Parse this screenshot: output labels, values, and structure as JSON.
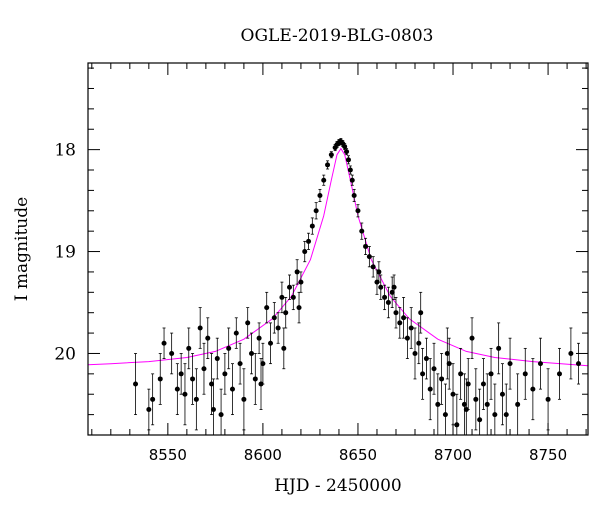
{
  "chart_data": {
    "type": "scatter",
    "title": "OGLE-2019-BLG-0803",
    "xlabel": "HJD - 2450000",
    "ylabel": "I magnitude",
    "xlim": [
      8508,
      8771
    ],
    "ylim": [
      20.8,
      17.15
    ],
    "y_inverted": true,
    "grid": false,
    "legend": "none",
    "xticks": [
      8550,
      8600,
      8650,
      8700,
      8750
    ],
    "xtick_labels": [
      "8550",
      "8600",
      "8650",
      "8700",
      "8750"
    ],
    "yticks": [
      18,
      19,
      20
    ],
    "ytick_labels": [
      "18",
      "19",
      "20"
    ],
    "colors": {
      "data": "#000000",
      "model": "#ff00ff"
    },
    "model": {
      "name": "",
      "type": "microlensing fit",
      "t0": 8641,
      "tE": 20,
      "u0": 0.15,
      "baseline": 20.12,
      "flux_fraction": 0.0,
      "points": [
        [
          8508,
          20.11
        ],
        [
          8520,
          20.1
        ],
        [
          8540,
          20.08
        ],
        [
          8560,
          20.04
        ],
        [
          8575,
          19.98
        ],
        [
          8590,
          19.86
        ],
        [
          8605,
          19.66
        ],
        [
          8615,
          19.44
        ],
        [
          8625,
          19.08
        ],
        [
          8632,
          18.65
        ],
        [
          8636,
          18.3
        ],
        [
          8639,
          18.05
        ],
        [
          8641,
          17.99
        ],
        [
          8643,
          18.05
        ],
        [
          8646,
          18.3
        ],
        [
          8650,
          18.65
        ],
        [
          8657,
          19.08
        ],
        [
          8667,
          19.44
        ],
        [
          8677,
          19.66
        ],
        [
          8692,
          19.86
        ],
        [
          8707,
          19.98
        ],
        [
          8722,
          20.04
        ],
        [
          8742,
          20.08
        ],
        [
          8771,
          20.12
        ]
      ]
    },
    "points": [
      [
        8533,
        20.3,
        0.3
      ],
      [
        8540,
        20.55,
        0.2
      ],
      [
        8542,
        20.45,
        0.25
      ],
      [
        8548,
        19.9,
        0.15
      ],
      [
        8552,
        20.0,
        0.2
      ],
      [
        8555,
        20.35,
        0.25
      ],
      [
        8557,
        20.2,
        0.2
      ],
      [
        8559,
        20.4,
        0.3
      ],
      [
        8561,
        19.95,
        0.2
      ],
      [
        8563,
        20.25,
        0.25
      ],
      [
        8565,
        20.45,
        0.3
      ],
      [
        8567,
        19.75,
        0.2
      ],
      [
        8569,
        20.15,
        0.25
      ],
      [
        8571,
        19.85,
        0.2
      ],
      [
        8573,
        20.3,
        0.3
      ],
      [
        8576,
        20.05,
        0.2
      ],
      [
        8578,
        20.6,
        0.25
      ],
      [
        8580,
        20.2,
        0.2
      ],
      [
        8582,
        19.95,
        0.2
      ],
      [
        8584,
        20.35,
        0.25
      ],
      [
        8586,
        19.8,
        0.15
      ],
      [
        8588,
        20.1,
        0.2
      ],
      [
        8590,
        20.45,
        0.3
      ],
      [
        8592,
        19.7,
        0.15
      ],
      [
        8594,
        20.0,
        0.2
      ],
      [
        8596,
        20.25,
        0.25
      ],
      [
        8598,
        19.85,
        0.15
      ],
      [
        8600,
        20.1,
        0.2
      ],
      [
        8602,
        19.55,
        0.15
      ],
      [
        8604,
        19.9,
        0.2
      ],
      [
        8606,
        19.65,
        0.15
      ],
      [
        8608,
        19.75,
        0.15
      ],
      [
        8610,
        19.45,
        0.15
      ],
      [
        8612,
        19.6,
        0.15
      ],
      [
        8614,
        19.35,
        0.12
      ],
      [
        8616,
        19.45,
        0.12
      ],
      [
        8618,
        19.2,
        0.12
      ],
      [
        8620,
        19.3,
        0.1
      ],
      [
        8622,
        19.0,
        0.1
      ],
      [
        8624,
        18.9,
        0.08
      ],
      [
        8626,
        18.75,
        0.08
      ],
      [
        8628,
        18.6,
        0.08
      ],
      [
        8630,
        18.45,
        0.06
      ],
      [
        8632,
        18.3,
        0.05
      ],
      [
        8634,
        18.15,
        0.04
      ],
      [
        8636,
        18.05,
        0.03
      ],
      [
        8638,
        17.98,
        0.03
      ],
      [
        8639,
        17.95,
        0.03
      ],
      [
        8640,
        17.93,
        0.03
      ],
      [
        8641,
        17.92,
        0.03
      ],
      [
        8642,
        17.94,
        0.03
      ],
      [
        8643,
        17.97,
        0.03
      ],
      [
        8644,
        18.02,
        0.03
      ],
      [
        8645,
        18.1,
        0.04
      ],
      [
        8646,
        18.2,
        0.04
      ],
      [
        8647,
        18.3,
        0.05
      ],
      [
        8648,
        18.45,
        0.06
      ],
      [
        8650,
        18.6,
        0.06
      ],
      [
        8652,
        18.8,
        0.08
      ],
      [
        8654,
        18.95,
        0.08
      ],
      [
        8656,
        19.05,
        0.1
      ],
      [
        8658,
        19.15,
        0.1
      ],
      [
        8660,
        19.3,
        0.12
      ],
      [
        8662,
        19.35,
        0.12
      ],
      [
        8664,
        19.45,
        0.12
      ],
      [
        8666,
        19.5,
        0.15
      ],
      [
        8668,
        19.4,
        0.15
      ],
      [
        8670,
        19.6,
        0.15
      ],
      [
        8672,
        19.7,
        0.15
      ],
      [
        8674,
        19.65,
        0.2
      ],
      [
        8676,
        19.85,
        0.2
      ],
      [
        8678,
        19.75,
        0.2
      ],
      [
        8680,
        20.0,
        0.25
      ],
      [
        8682,
        19.9,
        0.2
      ],
      [
        8684,
        20.2,
        0.25
      ],
      [
        8686,
        20.05,
        0.2
      ],
      [
        8688,
        20.35,
        0.3
      ],
      [
        8690,
        20.15,
        0.25
      ],
      [
        8692,
        20.5,
        0.3
      ],
      [
        8694,
        20.25,
        0.25
      ],
      [
        8696,
        20.6,
        0.3
      ],
      [
        8698,
        20.1,
        0.25
      ],
      [
        8700,
        20.4,
        0.3
      ],
      [
        8702,
        20.7,
        0.3
      ],
      [
        8704,
        20.2,
        0.25
      ],
      [
        8706,
        20.5,
        0.3
      ],
      [
        8708,
        20.3,
        0.25
      ],
      [
        8710,
        19.85,
        0.2
      ],
      [
        8712,
        20.45,
        0.3
      ],
      [
        8714,
        20.65,
        0.3
      ],
      [
        8716,
        20.3,
        0.25
      ],
      [
        8718,
        20.5,
        0.3
      ],
      [
        8720,
        20.2,
        0.25
      ],
      [
        8722,
        20.6,
        0.3
      ],
      [
        8724,
        19.95,
        0.25
      ],
      [
        8726,
        20.4,
        0.3
      ],
      [
        8730,
        20.1,
        0.25
      ],
      [
        8734,
        20.5,
        0.3
      ],
      [
        8738,
        20.2,
        0.25
      ],
      [
        8742,
        20.35,
        0.3
      ],
      [
        8746,
        20.1,
        0.25
      ],
      [
        8750,
        20.45,
        0.3
      ],
      [
        8756,
        20.2,
        0.25
      ],
      [
        8762,
        20.0,
        0.25
      ],
      [
        8766,
        20.1,
        0.2
      ],
      [
        8546,
        20.25,
        0.25
      ],
      [
        8574,
        20.55,
        0.3
      ],
      [
        8599,
        20.3,
        0.25
      ],
      [
        8611,
        19.95,
        0.2
      ],
      [
        8619,
        19.55,
        0.15
      ],
      [
        8661,
        19.2,
        0.1
      ],
      [
        8669,
        19.35,
        0.12
      ],
      [
        8683,
        19.6,
        0.2
      ],
      [
        8697,
        20.0,
        0.25
      ],
      [
        8707,
        20.55,
        0.3
      ],
      [
        8728,
        20.6,
        0.3
      ]
    ]
  }
}
